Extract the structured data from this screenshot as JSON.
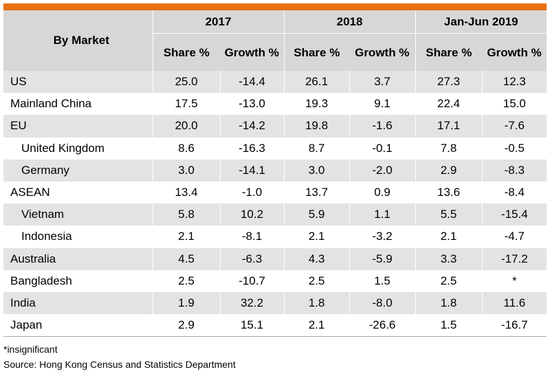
{
  "table": {
    "market_header": "By Market",
    "periods": [
      "2017",
      "2018",
      "Jan-Jun 2019"
    ],
    "sub_headers": {
      "share": "Share %",
      "growth": "Growth %"
    },
    "rows": [
      {
        "market": "US",
        "sub": false,
        "values": [
          "25.0",
          "-14.4",
          "26.1",
          "3.7",
          "27.3",
          "12.3"
        ]
      },
      {
        "market": "Mainland China",
        "sub": false,
        "values": [
          "17.5",
          "-13.0",
          "19.3",
          "9.1",
          "22.4",
          "15.0"
        ]
      },
      {
        "market": "EU",
        "sub": false,
        "values": [
          "20.0",
          "-14.2",
          "19.8",
          "-1.6",
          "17.1",
          "-7.6"
        ]
      },
      {
        "market": "United Kingdom",
        "sub": true,
        "values": [
          "8.6",
          "-16.3",
          "8.7",
          "-0.1",
          "7.8",
          "-0.5"
        ]
      },
      {
        "market": "Germany",
        "sub": true,
        "values": [
          "3.0",
          "-14.1",
          "3.0",
          "-2.0",
          "2.9",
          "-8.3"
        ]
      },
      {
        "market": "ASEAN",
        "sub": false,
        "values": [
          "13.4",
          "-1.0",
          "13.7",
          "0.9",
          "13.6",
          "-8.4"
        ]
      },
      {
        "market": "Vietnam",
        "sub": true,
        "values": [
          "5.8",
          "10.2",
          "5.9",
          "1.1",
          "5.5",
          "-15.4"
        ]
      },
      {
        "market": "Indonesia",
        "sub": true,
        "values": [
          "2.1",
          "-8.1",
          "2.1",
          "-3.2",
          "2.1",
          "-4.7"
        ]
      },
      {
        "market": "Australia",
        "sub": false,
        "values": [
          "4.5",
          "-6.3",
          "4.3",
          "-5.9",
          "3.3",
          "-17.2"
        ]
      },
      {
        "market": "Bangladesh",
        "sub": false,
        "values": [
          "2.5",
          "-10.7",
          "2.5",
          "1.5",
          "2.5",
          "*"
        ]
      },
      {
        "market": "India",
        "sub": false,
        "values": [
          "1.9",
          "32.2",
          "1.8",
          "-8.0",
          "1.8",
          "11.6"
        ]
      },
      {
        "market": "Japan",
        "sub": false,
        "values": [
          "2.9",
          "15.1",
          "2.1",
          "-26.6",
          "1.5",
          "-16.7"
        ]
      }
    ]
  },
  "footnotes": {
    "note": "*insignificant",
    "source": "Source: Hong Kong Census and Statistics Department"
  },
  "colors": {
    "accent_bar": "#e8700f",
    "header_bg": "#d7d7d7",
    "row_shade": "#e3e3e3"
  }
}
